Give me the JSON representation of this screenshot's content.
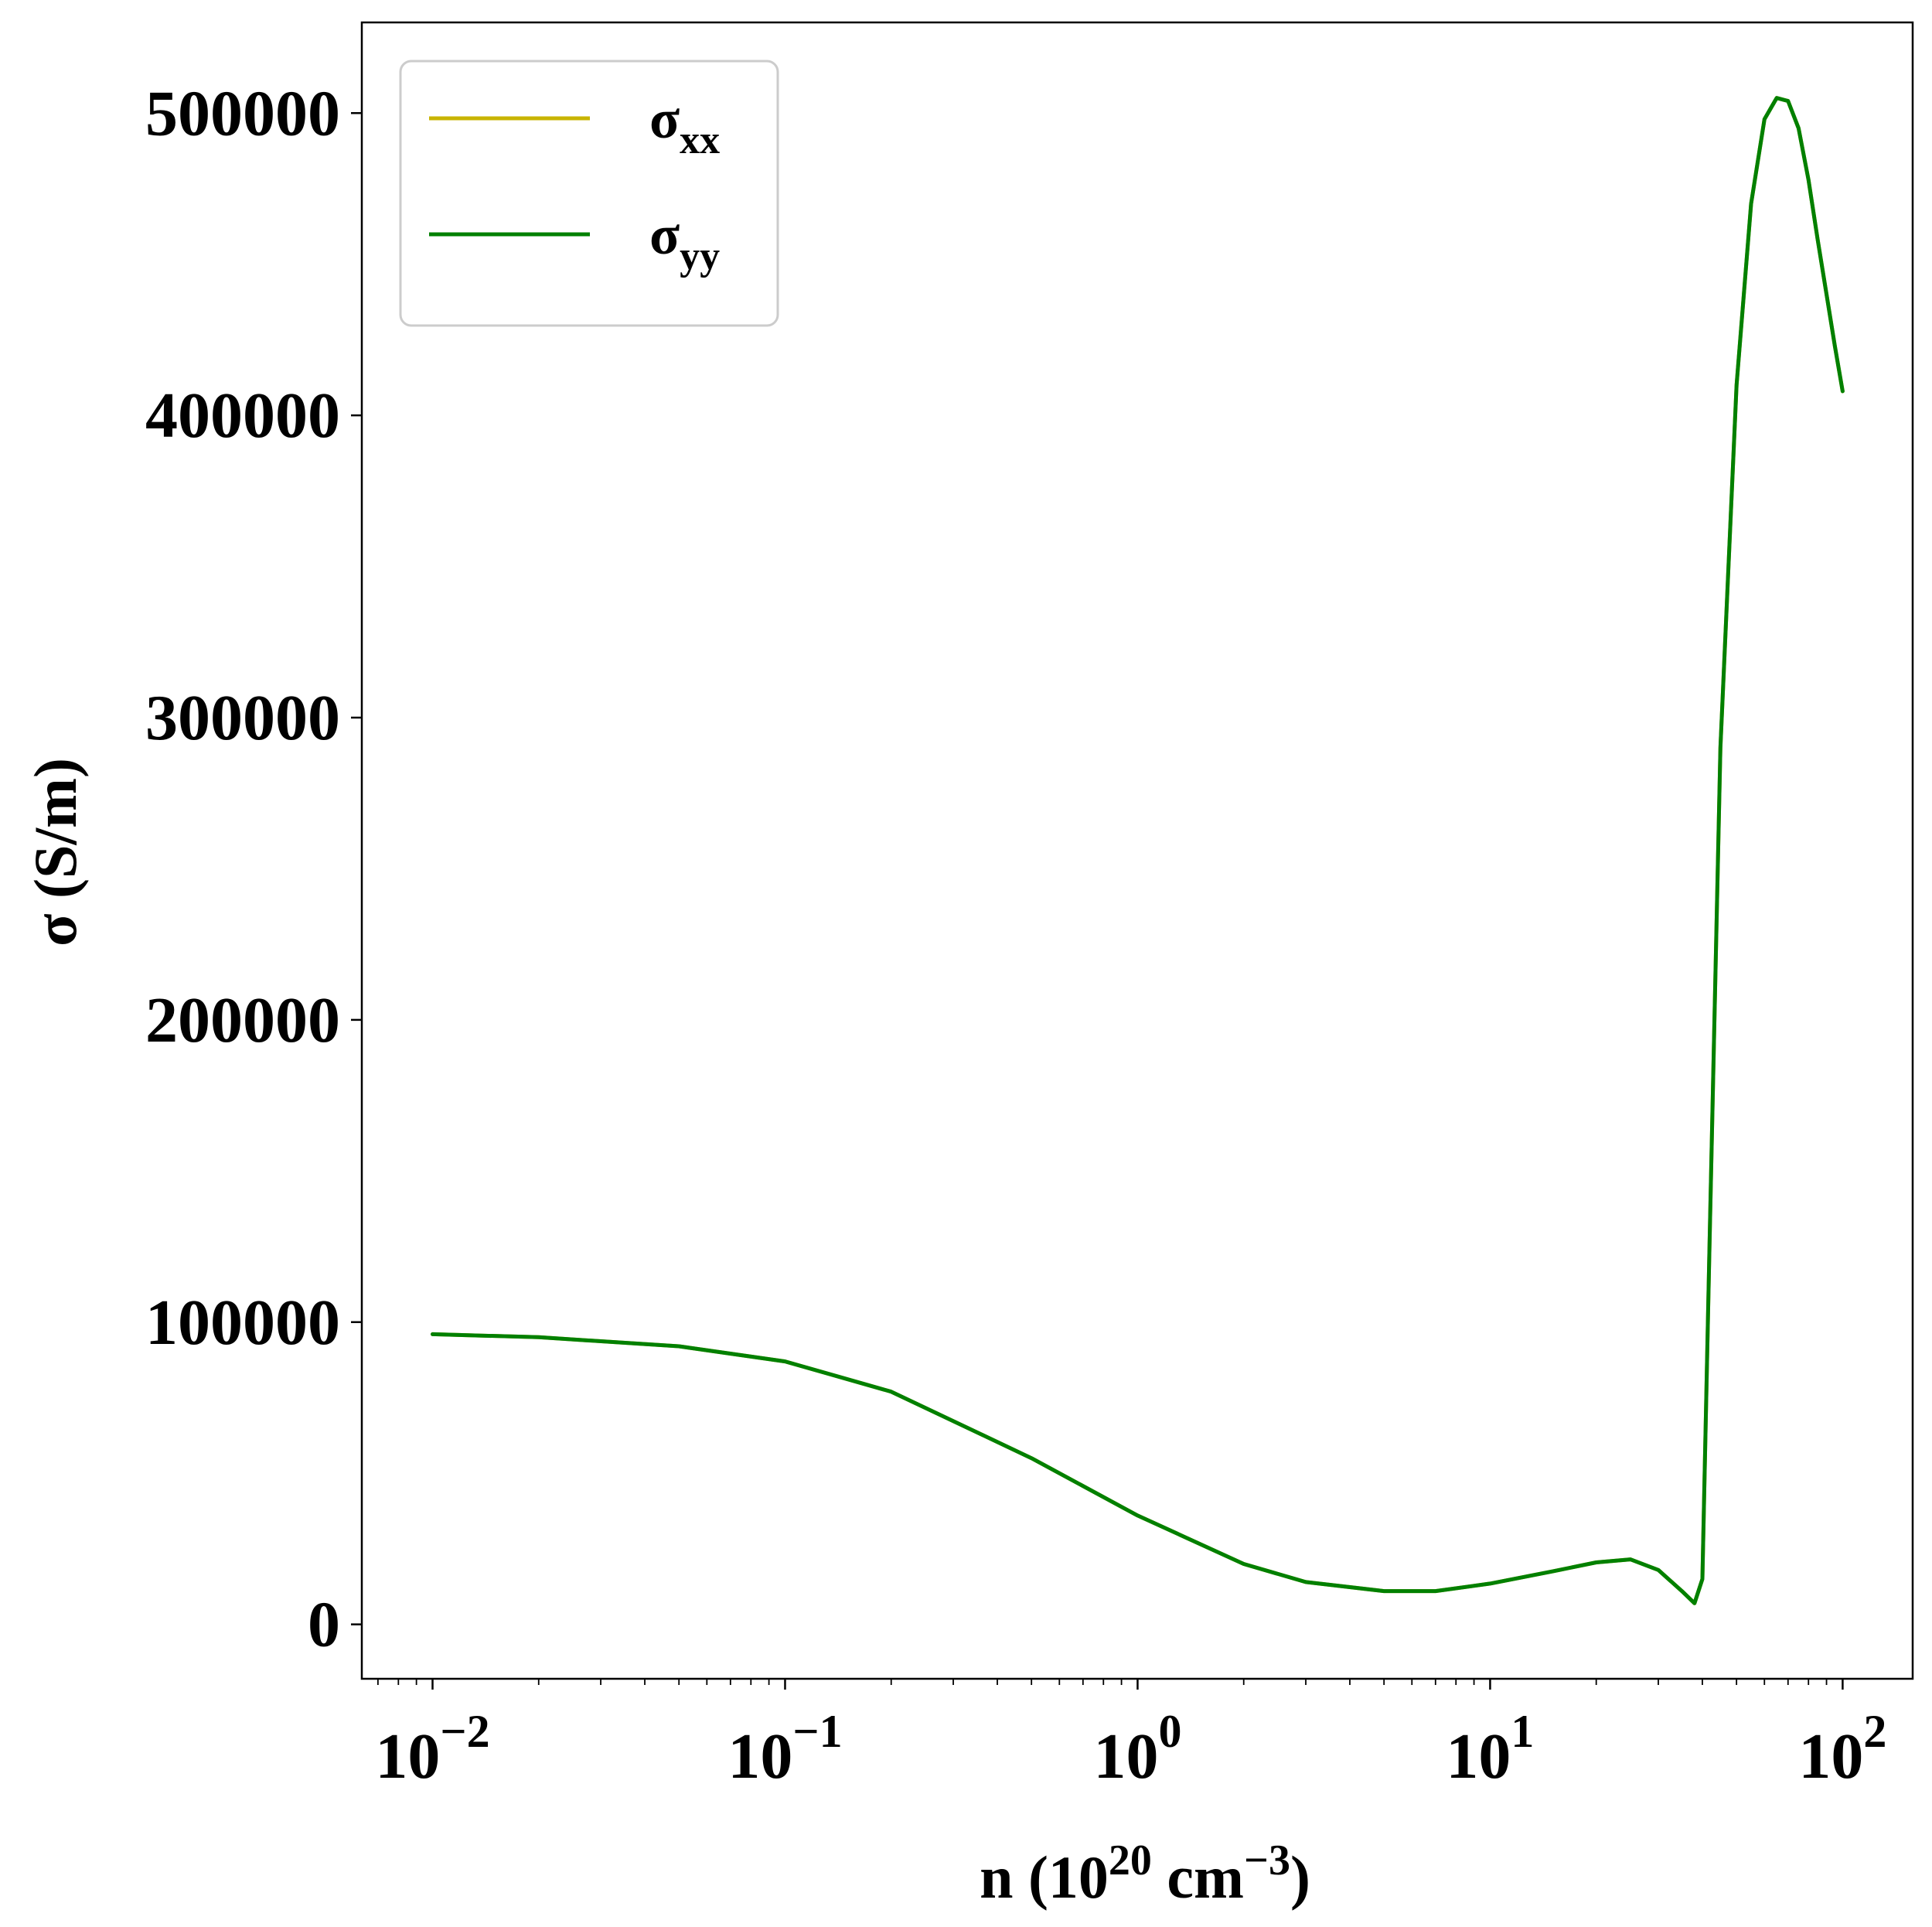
{
  "chart_data": {
    "type": "line",
    "xscale": "log",
    "xlim": [
      0.0063,
      158
    ],
    "ylim": [
      -18000,
      530000
    ],
    "grid": false,
    "legend_position": "top-left",
    "xlabel": {
      "base": "n (10",
      "exp1": "20",
      "mid": " cm",
      "exp2": "−3",
      "end": ")"
    },
    "ylabel": "σ (S/m)",
    "x_ticks": [
      {
        "value": 0.01,
        "base": "10",
        "exp": "−2"
      },
      {
        "value": 0.1,
        "base": "10",
        "exp": "−1"
      },
      {
        "value": 1,
        "base": "10",
        "exp": "0"
      },
      {
        "value": 10,
        "base": "10",
        "exp": "1"
      },
      {
        "value": 100,
        "base": "10",
        "exp": "2"
      }
    ],
    "y_ticks": [
      {
        "value": 0,
        "label": "0"
      },
      {
        "value": 100000,
        "label": "100000"
      },
      {
        "value": 200000,
        "label": "200000"
      },
      {
        "value": 300000,
        "label": "300000"
      },
      {
        "value": 400000,
        "label": "400000"
      },
      {
        "value": 500000,
        "label": "500000"
      }
    ],
    "series": [
      {
        "name": "σxx",
        "label_main": "σ",
        "label_sub": "xx",
        "color": "#c8b400",
        "x": [
          0.01,
          0.02,
          0.05,
          0.1,
          0.2,
          0.5,
          1,
          2,
          3,
          5,
          7,
          10,
          15,
          20,
          25,
          30,
          35,
          38,
          40,
          42,
          45,
          50,
          55,
          60,
          65,
          70,
          75,
          80,
          85,
          90,
          95,
          100
        ],
        "y": [
          96000,
          95000,
          92000,
          87000,
          77000,
          55000,
          36000,
          20000,
          14000,
          11000,
          11000,
          13500,
          17500,
          20500,
          21500,
          18000,
          11000,
          7000,
          15000,
          130000,
          290000,
          410000,
          470000,
          498000,
          505000,
          504000,
          495000,
          478000,
          458000,
          440000,
          423000,
          408000
        ]
      },
      {
        "name": "σyy",
        "label_main": "σ",
        "label_sub": "yy",
        "color": "#008000",
        "x": [
          0.01,
          0.02,
          0.05,
          0.1,
          0.2,
          0.5,
          1,
          2,
          3,
          5,
          7,
          10,
          15,
          20,
          25,
          30,
          35,
          38,
          40,
          42,
          45,
          50,
          55,
          60,
          65,
          70,
          75,
          80,
          85,
          90,
          95,
          100
        ],
        "y": [
          96000,
          95000,
          92000,
          87000,
          77000,
          55000,
          36000,
          20000,
          14000,
          11000,
          11000,
          13500,
          17500,
          20500,
          21500,
          18000,
          11000,
          7000,
          15000,
          130000,
          290000,
          410000,
          470000,
          498000,
          505000,
          504000,
          495000,
          478000,
          458000,
          440000,
          423000,
          408000
        ]
      }
    ]
  }
}
